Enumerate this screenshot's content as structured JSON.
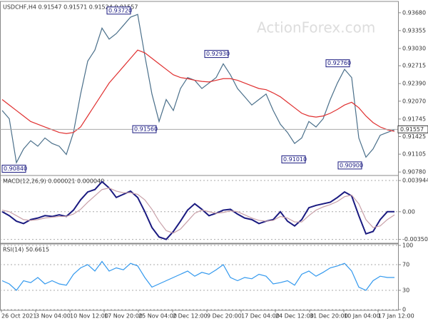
{
  "watermark": "ActionForex.com",
  "x_axis_labels": [
    "26 Oct 2021",
    "3 Nov 04:00",
    "10 Nov 12:00",
    "17 Nov 20:00",
    "25 Nov 04:00",
    "2 Dec 12:00",
    "9 Dec 20:00",
    "17 Dec 04:00",
    "24 Dec 12:00",
    "31 Dec 20:00",
    "10 Jan 04:00",
    "17 Jan 12:00"
  ],
  "chart_data": [
    {
      "type": "line",
      "title": "USDCHF,H4  0.91547 0.91571 0.91524 0.91557",
      "ylim": [
        0.9073,
        0.9386
      ],
      "yticks": [
        {
          "value": 0.9368,
          "label": "0.93680"
        },
        {
          "value": 0.93355,
          "label": "0.93355"
        },
        {
          "value": 0.9303,
          "label": "0.93030"
        },
        {
          "value": 0.92715,
          "label": "0.92715"
        },
        {
          "value": 0.9239,
          "label": "0.92390"
        },
        {
          "value": 0.9207,
          "label": "0.92070"
        },
        {
          "value": 0.91745,
          "label": "0.91745"
        },
        {
          "value": 0.91425,
          "label": "0.91425"
        },
        {
          "value": 0.91105,
          "label": "0.91105"
        },
        {
          "value": 0.9078,
          "label": "0.90780"
        }
      ],
      "last_price": {
        "value": 0.91557,
        "label": "0.91557"
      },
      "annotations": [
        {
          "value": 0.9372,
          "label": "0.93720"
        },
        {
          "value": 0.9293,
          "label": "0.92930"
        },
        {
          "value": 0.9276,
          "label": "0.92760"
        },
        {
          "value": 0.9156,
          "label": "0.91560"
        },
        {
          "value": 0.9084,
          "label": "0.90840"
        },
        {
          "value": 0.9101,
          "label": "0.91010"
        },
        {
          "value": 0.909,
          "label": "0.90900"
        }
      ],
      "series": [
        {
          "color": "#4a6f8a",
          "values": [
            0.919,
            0.9175,
            0.9095,
            0.912,
            0.9135,
            0.9125,
            0.914,
            0.913,
            0.9125,
            0.911,
            0.915,
            0.922,
            0.928,
            0.93,
            0.934,
            0.932,
            0.933,
            0.9345,
            0.936,
            0.9365,
            0.929,
            0.922,
            0.917,
            0.921,
            0.919,
            0.923,
            0.925,
            0.9245,
            0.923,
            0.924,
            0.925,
            0.9275,
            0.9255,
            0.923,
            0.9215,
            0.92,
            0.921,
            0.922,
            0.919,
            0.9165,
            0.915,
            0.913,
            0.914,
            0.917,
            0.916,
            0.9175,
            0.921,
            0.924,
            0.9265,
            0.925,
            0.914,
            0.9105,
            0.912,
            0.9145,
            0.915,
            0.9155
          ]
        },
        {
          "color": "#e03030",
          "values": [
            0.921,
            0.92,
            0.919,
            0.918,
            0.917,
            0.9165,
            0.916,
            0.9155,
            0.915,
            0.9148,
            0.915,
            0.916,
            0.918,
            0.92,
            0.922,
            0.924,
            0.9255,
            0.927,
            0.9285,
            0.93,
            0.9295,
            0.9285,
            0.9275,
            0.9265,
            0.9255,
            0.925,
            0.9248,
            0.9245,
            0.9243,
            0.9242,
            0.9245,
            0.9248,
            0.9248,
            0.9245,
            0.924,
            0.9235,
            0.923,
            0.9228,
            0.9222,
            0.9215,
            0.9205,
            0.9195,
            0.9185,
            0.918,
            0.9178,
            0.918,
            0.9185,
            0.9192,
            0.92,
            0.9205,
            0.9195,
            0.918,
            0.9168,
            0.916,
            0.9155,
            0.9152
          ]
        }
      ]
    },
    {
      "type": "line",
      "title": "MACD(12,26,9) 0.000021 0.000040",
      "ylim": [
        -0.0039,
        0.0044
      ],
      "yticks": [
        {
          "value": 0.003944,
          "label": "0.003944"
        },
        {
          "value": 0,
          "label": "0.00"
        },
        {
          "value": -0.003506,
          "label": "-0.003506"
        }
      ],
      "series": [
        {
          "color": "#1a1a80",
          "values": [
            0,
            -0.0005,
            -0.0012,
            -0.0015,
            -0.001,
            -0.0008,
            -0.0005,
            -0.0006,
            -0.0004,
            -0.0006,
            0.0002,
            0.0015,
            0.0025,
            0.0028,
            0.0038,
            0.003,
            0.0018,
            0.0022,
            0.0026,
            0.0018,
            0,
            -0.002,
            -0.0032,
            -0.0035,
            -0.0025,
            -0.0012,
            0.0002,
            0.001,
            0.0003,
            -0.0005,
            -0.0002,
            0.0002,
            0.0003,
            -0.0003,
            -0.0008,
            -0.001,
            -0.0015,
            -0.0012,
            -0.001,
            0,
            -0.0012,
            -0.0018,
            -0.001,
            0.0005,
            0.0008,
            0.001,
            0.0012,
            0.0018,
            0.0025,
            0.002,
            -0.0005,
            -0.0028,
            -0.0025,
            -0.001,
            0,
            0
          ]
        },
        {
          "color": "#c8a0a8",
          "values": [
            0.0002,
            0,
            -0.0005,
            -0.001,
            -0.0011,
            -0.001,
            -0.0008,
            -0.0007,
            -0.0006,
            -0.0006,
            -0.0003,
            0.0003,
            0.0012,
            0.002,
            0.0028,
            0.003,
            0.0026,
            0.0024,
            0.0024,
            0.0022,
            0.0015,
            0.0003,
            -0.0012,
            -0.0024,
            -0.0027,
            -0.0022,
            -0.0012,
            -0.0002,
            0.0002,
            0,
            -0.0002,
            -0.0001,
            0.0001,
            0,
            -0.0004,
            -0.0008,
            -0.0011,
            -0.0012,
            -0.0011,
            -0.0006,
            -0.0008,
            -0.0013,
            -0.0013,
            -0.0005,
            0.0002,
            0.0006,
            0.0009,
            0.0013,
            0.0019,
            0.0021,
            0.001,
            -0.001,
            -0.002,
            -0.0018,
            -0.001,
            -0.0004
          ]
        }
      ]
    },
    {
      "type": "line",
      "title": "RSI(14) 50.6615",
      "ylim": [
        0,
        100
      ],
      "yticks": [
        100,
        70,
        30,
        0
      ],
      "series": [
        {
          "color": "#3399ee",
          "values": [
            45,
            40,
            30,
            45,
            42,
            50,
            40,
            45,
            40,
            38,
            55,
            65,
            70,
            60,
            75,
            60,
            65,
            62,
            72,
            68,
            50,
            35,
            40,
            45,
            50,
            55,
            60,
            52,
            58,
            55,
            62,
            70,
            50,
            45,
            50,
            48,
            55,
            52,
            40,
            42,
            45,
            38,
            55,
            60,
            52,
            58,
            65,
            68,
            72,
            60,
            35,
            30,
            45,
            52,
            50,
            50
          ]
        }
      ]
    }
  ]
}
